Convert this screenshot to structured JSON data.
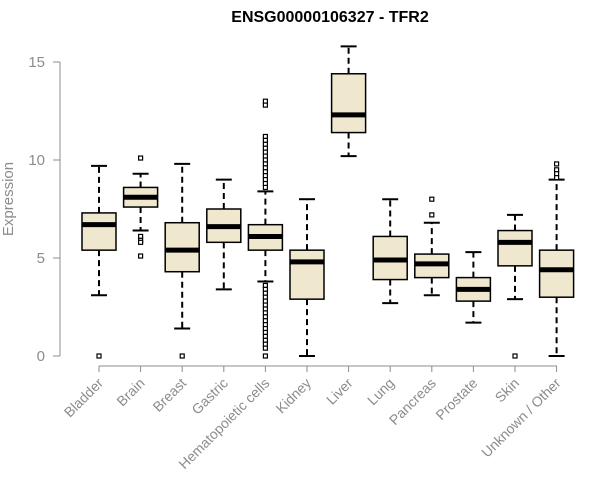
{
  "chart_data": {
    "type": "box",
    "title": "ENSG00000106327 - TFR2",
    "xlabel": "",
    "ylabel": "Expression",
    "ylim": [
      0,
      15.8
    ],
    "yticks": [
      0,
      5,
      10,
      15
    ],
    "grid": false,
    "fill_color": "#efe8cf",
    "categories": [
      "Bladder",
      "Brain",
      "Breast",
      "Gastric",
      "Hematopoietic cells",
      "Kidney",
      "Liver",
      "Lung",
      "Pancreas",
      "Prostate",
      "Skin",
      "Unknown / Other"
    ],
    "boxes": [
      {
        "name": "Bladder",
        "whisker_low": 3.1,
        "q1": 5.4,
        "median": 6.7,
        "q3": 7.3,
        "whisker_high": 9.7,
        "outliers": [
          0.0
        ]
      },
      {
        "name": "Brain",
        "whisker_low": 6.4,
        "q1": 7.6,
        "median": 8.1,
        "q3": 8.6,
        "whisker_high": 9.3,
        "outliers": [
          10.1,
          6.1,
          5.9,
          5.8,
          5.1
        ]
      },
      {
        "name": "Breast",
        "whisker_low": 1.4,
        "q1": 4.3,
        "median": 5.4,
        "q3": 6.8,
        "whisker_high": 9.8,
        "outliers": [
          0.0
        ]
      },
      {
        "name": "Gastric",
        "whisker_low": 3.4,
        "q1": 5.8,
        "median": 6.6,
        "q3": 7.5,
        "whisker_high": 9.0,
        "outliers": []
      },
      {
        "name": "Hematopoietic cells",
        "whisker_low": 3.8,
        "q1": 5.4,
        "median": 6.1,
        "q3": 6.7,
        "whisker_high": 8.4,
        "outliers": [
          13.0,
          12.8,
          11.2,
          11.0,
          10.8,
          10.6,
          10.4,
          10.2,
          10.0,
          9.8,
          9.6,
          9.4,
          9.2,
          9.0,
          8.8,
          8.6,
          3.6,
          3.4,
          3.2,
          3.0,
          2.8,
          2.6,
          2.4,
          2.2,
          2.0,
          1.8,
          1.6,
          1.4,
          1.2,
          1.0,
          0.8,
          0.6,
          0.4,
          0.0
        ]
      },
      {
        "name": "Kidney",
        "whisker_low": 0.0,
        "q1": 2.9,
        "median": 4.8,
        "q3": 5.4,
        "whisker_high": 8.0,
        "outliers": []
      },
      {
        "name": "Liver",
        "whisker_low": 10.2,
        "q1": 11.4,
        "median": 12.3,
        "q3": 14.4,
        "whisker_high": 15.8,
        "outliers": []
      },
      {
        "name": "Lung",
        "whisker_low": 2.7,
        "q1": 3.9,
        "median": 4.9,
        "q3": 6.1,
        "whisker_high": 8.0,
        "outliers": []
      },
      {
        "name": "Pancreas",
        "whisker_low": 3.1,
        "q1": 4.0,
        "median": 4.7,
        "q3": 5.2,
        "whisker_high": 6.8,
        "outliers": [
          8.0,
          7.2
        ]
      },
      {
        "name": "Prostate",
        "whisker_low": 1.7,
        "q1": 2.8,
        "median": 3.4,
        "q3": 4.0,
        "whisker_high": 5.3,
        "outliers": []
      },
      {
        "name": "Skin",
        "whisker_low": 2.9,
        "q1": 4.6,
        "median": 5.8,
        "q3": 6.4,
        "whisker_high": 7.2,
        "outliers": [
          0.0
        ]
      },
      {
        "name": "Unknown / Other",
        "whisker_low": 0.0,
        "q1": 3.0,
        "median": 4.4,
        "q3": 5.4,
        "whisker_high": 9.0,
        "outliers": [
          9.8,
          9.5,
          9.3,
          9.1
        ]
      }
    ]
  }
}
